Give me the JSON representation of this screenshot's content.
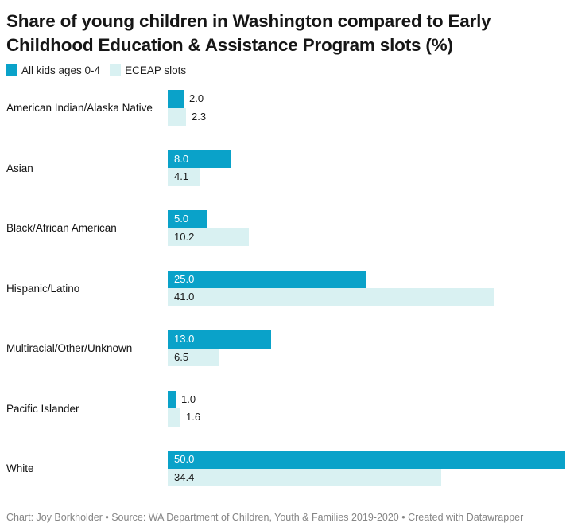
{
  "chart_data": {
    "type": "bar",
    "orientation": "horizontal",
    "title": "Share of young children in Washington compared to Early Childhood Education & Assistance Program slots (%)",
    "categories": [
      "American Indian/Alaska Native",
      "Asian",
      "Black/African American",
      "Hispanic/Latino",
      "Multiracial/Other/Unknown",
      "Pacific Islander",
      "White"
    ],
    "series": [
      {
        "name": "All kids ages 0-4",
        "color": "#0aa2c9",
        "values": [
          2.0,
          8.0,
          5.0,
          25.0,
          13.0,
          1.0,
          50.0
        ],
        "labels": [
          "2.0",
          "8.0",
          "5.0",
          "25.0",
          "13.0",
          "1.0",
          "50.0"
        ]
      },
      {
        "name": "ECEAP slots",
        "color": "#d9f1f2",
        "values": [
          2.3,
          4.1,
          10.2,
          41.0,
          6.5,
          1.6,
          34.4
        ],
        "labels": [
          "2.3",
          "4.1",
          "10.2",
          "41.0",
          "6.5",
          "1.6",
          "34.4"
        ]
      }
    ],
    "xlim": [
      0,
      50
    ],
    "grid": "off",
    "legend_position": "top-left",
    "footer": "Chart: Joy Borkholder • Source: WA Department of Children, Youth & Families 2019-2020 • Created with Datawrapper"
  }
}
